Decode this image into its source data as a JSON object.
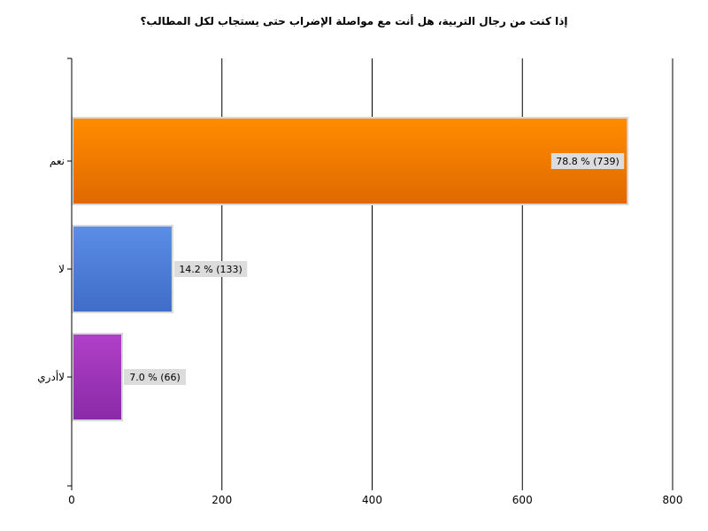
{
  "chart_data": {
    "type": "bar",
    "orientation": "horizontal",
    "title": "إذا كنت من رجال التربية، هل أنت مع مواصلة الإضراب حتى يستجاب لكل المطالب؟",
    "categories": [
      "نعم",
      "لا",
      "لاأدري"
    ],
    "values": [
      739,
      133,
      66
    ],
    "data_labels": [
      "78.8 % (739)",
      "14.2 % (133)",
      "7.0 % (66)"
    ],
    "xlim": [
      0,
      800
    ],
    "x_ticks": [
      0,
      200,
      400,
      600,
      800
    ],
    "grid": true,
    "colors": [
      "#ff8c00",
      "#5b8ee6",
      "#b040c8"
    ],
    "colors_dark": [
      "#e06800",
      "#3f6cc8",
      "#8a2aa8"
    ]
  }
}
